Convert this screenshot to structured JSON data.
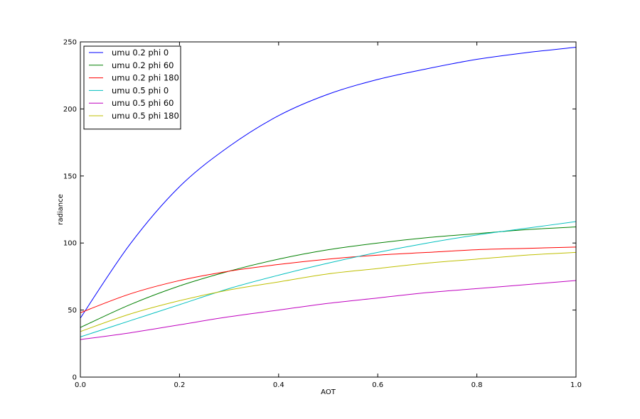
{
  "chart_data": {
    "type": "line",
    "title": "",
    "xlabel": "AOT",
    "ylabel": "radiance",
    "xlim": [
      0.0,
      1.0
    ],
    "ylim": [
      0,
      250
    ],
    "xticks": [
      0.0,
      0.2,
      0.4,
      0.6,
      0.8,
      1.0
    ],
    "xtick_labels": [
      "0.0",
      "0.2",
      "0.4",
      "0.6",
      "0.8",
      "1.0"
    ],
    "yticks": [
      0,
      50,
      100,
      150,
      200,
      250
    ],
    "ytick_labels": [
      "0",
      "50",
      "100",
      "150",
      "200",
      "250"
    ],
    "grid": false,
    "legend_position": "top-left",
    "x": [
      0.0,
      0.1,
      0.2,
      0.3,
      0.4,
      0.5,
      0.6,
      0.7,
      0.8,
      0.9,
      1.0
    ],
    "series": [
      {
        "name": "umu 0.2 phi 0",
        "color": "#0000ff",
        "values": [
          44,
          99,
          142,
          172,
          195,
          211,
          222,
          230,
          237,
          242,
          246
        ]
      },
      {
        "name": "umu 0.2 phi 60",
        "color": "#008000",
        "values": [
          37,
          54,
          68,
          79,
          88,
          95,
          100,
          104,
          107,
          110,
          112
        ]
      },
      {
        "name": "umu 0.2 phi 180",
        "color": "#ff0000",
        "values": [
          48,
          62,
          72,
          79,
          84,
          88,
          91,
          93,
          95,
          96,
          97
        ]
      },
      {
        "name": "umu 0.5 phi 0",
        "color": "#00bfbf",
        "values": [
          30,
          42,
          54,
          66,
          76,
          85,
          93,
          100,
          106,
          111,
          116
        ]
      },
      {
        "name": "umu 0.5 phi 60",
        "color": "#bf00bf",
        "values": [
          28,
          33,
          39,
          45,
          50,
          55,
          59,
          63,
          66,
          69,
          72
        ]
      },
      {
        "name": "umu 0.5 phi 180",
        "color": "#bfbf00",
        "values": [
          34,
          47,
          57,
          65,
          71,
          77,
          81,
          85,
          88,
          91,
          93
        ]
      }
    ]
  }
}
